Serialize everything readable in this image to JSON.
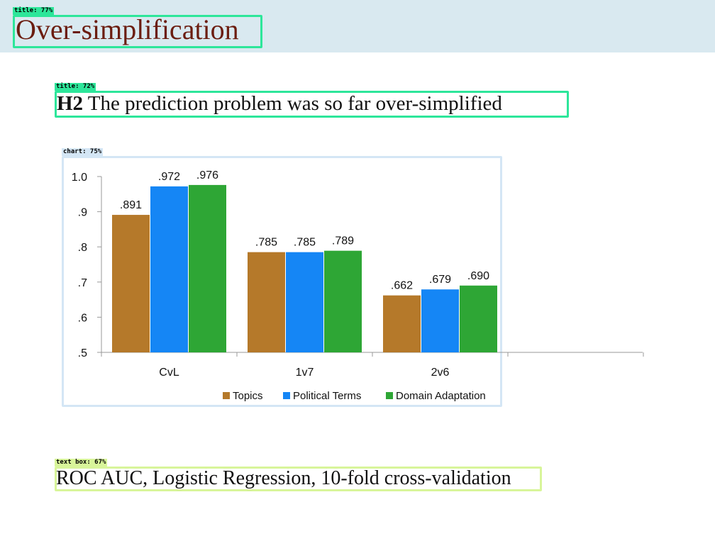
{
  "slide": {
    "title": "Over-simplification",
    "subtitle_prefix": "H2",
    "subtitle_text": "The prediction problem was so far over-simplified",
    "caption": "ROC AUC, Logistic Regression, 10-fold cross-validation"
  },
  "annotations": {
    "title_tag": "title: 77%",
    "subtitle_tag": "title: 72%",
    "chart_tag": "chart: 75%",
    "caption_tag": "text box: 67%"
  },
  "colors": {
    "header_band": "#d9e9f0",
    "title_text": "#6b1d10",
    "topics": "#b5792a",
    "political_terms": "#1586f5",
    "domain_adaptation": "#2ea635",
    "anno_title": "#2de69a",
    "anno_chart": "#d4e6f5",
    "anno_textbox": "#d8f59a"
  },
  "chart_data": {
    "type": "bar",
    "categories": [
      "CvL",
      "1v7",
      "2v6"
    ],
    "series": [
      {
        "name": "Topics",
        "values": [
          0.891,
          0.785,
          0.662
        ],
        "labels": [
          ".891",
          ".785",
          ".662"
        ]
      },
      {
        "name": "Political Terms",
        "values": [
          0.972,
          0.785,
          0.679
        ],
        "labels": [
          ".972",
          ".785",
          ".679"
        ]
      },
      {
        "name": "Domain Adaptation",
        "values": [
          0.976,
          0.789,
          0.69
        ],
        "labels": [
          ".976",
          ".789",
          ".690"
        ]
      }
    ],
    "ylim": [
      0.5,
      1.0
    ],
    "yticks": [
      0.5,
      0.6,
      0.7,
      0.8,
      0.9,
      1.0
    ],
    "ytick_labels": [
      ".5",
      ".6",
      ".7",
      ".8",
      ".9",
      "1.0"
    ],
    "title": "",
    "xlabel": "",
    "ylabel": "",
    "grid": false,
    "legend": "bottom"
  }
}
